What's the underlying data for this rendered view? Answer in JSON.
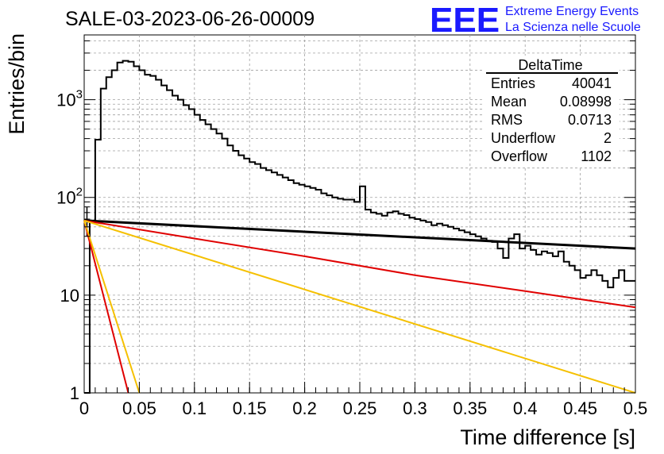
{
  "chart_data": {
    "type": "line",
    "title": "SALE-03-2023-06-26-00009",
    "xlabel": "Time difference [s]",
    "ylabel": "Entries/bin",
    "xlim": [
      0,
      0.5
    ],
    "ylim": [
      1,
      4600
    ],
    "y_scale": "log",
    "grid": true,
    "x_ticks": [
      "0",
      "0.05",
      "0.1",
      "0.15",
      "0.2",
      "0.25",
      "0.3",
      "0.35",
      "0.4",
      "0.45",
      "0.5"
    ],
    "y_ticks": [
      {
        "value": 1,
        "base": "1",
        "exp": ""
      },
      {
        "value": 10,
        "base": "10",
        "exp": ""
      },
      {
        "value": 100,
        "base": "10",
        "exp": "2"
      },
      {
        "value": 1000,
        "base": "10",
        "exp": "3"
      }
    ],
    "histogram": {
      "name": "DeltaTime",
      "bin_width": 0.005,
      "x_start": 0,
      "values": [
        0,
        58,
        390,
        1300,
        1700,
        2000,
        2400,
        2500,
        2450,
        2200,
        2000,
        1800,
        1750,
        1600,
        1400,
        1250,
        1100,
        1000,
        880,
        800,
        700,
        620,
        560,
        500,
        450,
        400,
        340,
        300,
        270,
        250,
        230,
        220,
        200,
        190,
        180,
        170,
        160,
        150,
        140,
        135,
        130,
        125,
        120,
        110,
        105,
        100,
        97,
        95,
        95,
        90,
        130,
        75,
        70,
        68,
        65,
        70,
        72,
        68,
        66,
        62,
        60,
        58,
        56,
        52,
        54,
        52,
        50,
        48,
        46,
        44,
        42,
        40,
        38,
        36,
        35,
        30,
        24,
        38,
        42,
        30,
        32,
        29,
        26,
        28,
        27,
        25,
        28,
        22,
        20,
        18,
        15,
        16,
        18,
        16,
        14,
        12,
        15,
        18,
        14,
        14
      ]
    },
    "fit_curves": [
      {
        "color": "#000000",
        "points": [
          [
            0,
            58
          ],
          [
            0.5,
            30
          ]
        ]
      },
      {
        "color": "#e00000",
        "points": [
          [
            0,
            58
          ],
          [
            0.1,
            38
          ],
          [
            0.2,
            25
          ],
          [
            0.3,
            16
          ],
          [
            0.4,
            11
          ],
          [
            0.5,
            7.5
          ]
        ]
      },
      {
        "color": "#f5c000",
        "points": [
          [
            0,
            58
          ],
          [
            0.5,
            1.0
          ]
        ]
      },
      {
        "color": "#e00000",
        "points": [
          [
            0,
            58
          ],
          [
            0.04,
            1.0
          ]
        ]
      },
      {
        "color": "#f5c000",
        "points": [
          [
            0,
            58
          ],
          [
            0.05,
            1.0
          ]
        ]
      }
    ],
    "stats": {
      "title": "DeltaTime",
      "rows": [
        {
          "label": "Entries",
          "value": "40041"
        },
        {
          "label": "Mean",
          "value": "0.08998"
        },
        {
          "label": "RMS",
          "value": "0.0713"
        },
        {
          "label": "Underflow",
          "value": "2"
        },
        {
          "label": "Overflow",
          "value": "1102"
        }
      ]
    },
    "logo": {
      "mark": "EEE",
      "line1": "Extreme Energy Events",
      "line2": "La Scienza nelle Scuole",
      "color": "#1a1aff"
    }
  }
}
